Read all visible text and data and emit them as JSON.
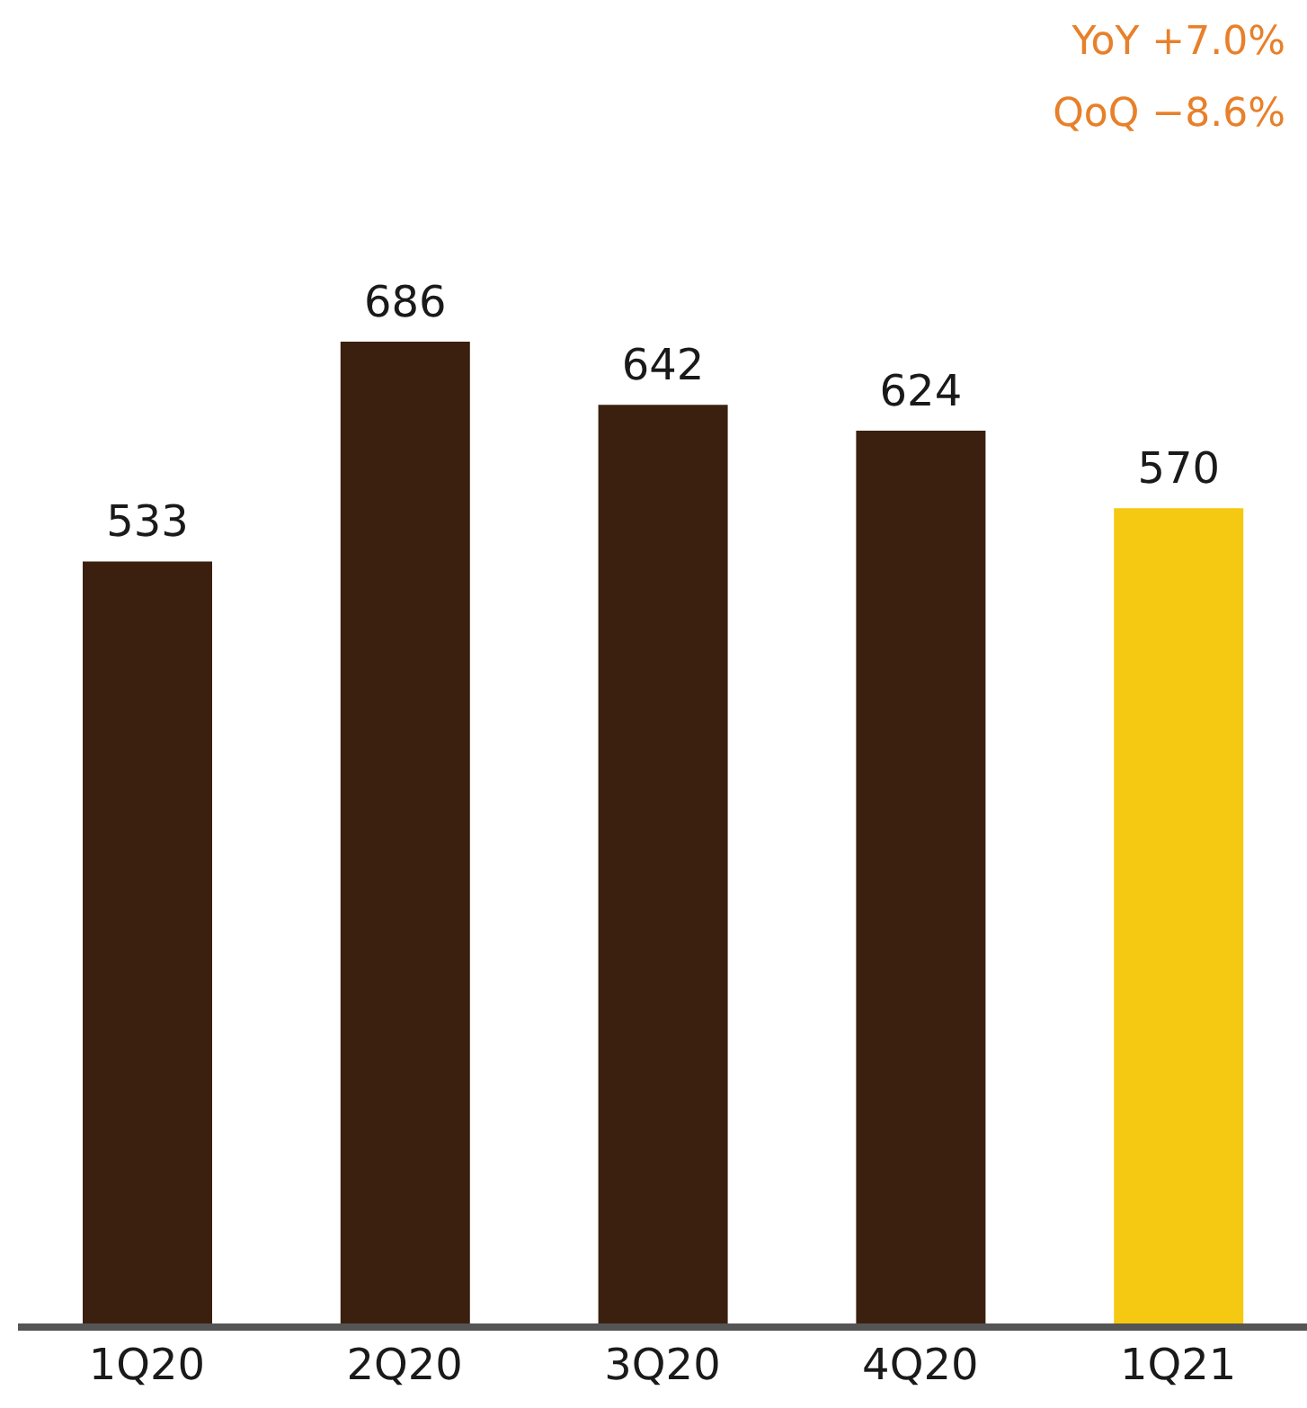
{
  "chart_data": {
    "type": "bar",
    "categories": [
      "1Q20",
      "2Q20",
      "3Q20",
      "4Q20",
      "1Q21"
    ],
    "values": [
      533,
      686,
      642,
      624,
      570
    ],
    "colors": [
      "#3b2010",
      "#3b2010",
      "#3b2010",
      "#3b2010",
      "#f5c912"
    ],
    "data_labels": true,
    "annotations": [
      "YoY +7.0%",
      "QoQ −8.6%"
    ]
  }
}
